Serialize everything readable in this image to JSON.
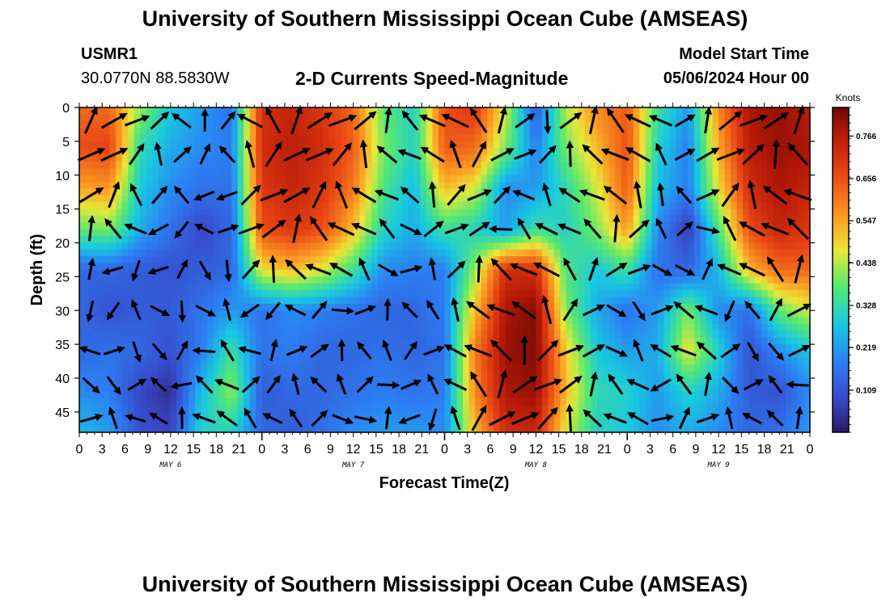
{
  "header": {
    "title": "University of Southern Mississippi Ocean Cube (AMSEAS)",
    "station": "USMR1",
    "coords": "30.0770N  88.5830W",
    "subtitle": "2-D Currents Speed-Magnitude",
    "start_label": "Model Start Time",
    "start_value": "05/06/2024 Hour 00"
  },
  "footer": {
    "title": "University of Southern Mississippi Ocean Cube (AMSEAS)"
  },
  "chart_data": {
    "type": "heatmap",
    "title": "2-D Currents Speed-Magnitude",
    "xlabel": "Forecast Time(Z)",
    "ylabel": "Depth (ft)",
    "x_range_hours": [
      0,
      96
    ],
    "y_range_ft": [
      0,
      48
    ],
    "y_inverted": true,
    "x_tick_hours": [
      0,
      3,
      6,
      9,
      12,
      15,
      18,
      21,
      24,
      27,
      30,
      33,
      36,
      39,
      42,
      45,
      48,
      51,
      54,
      57,
      60,
      63,
      66,
      69,
      72,
      75,
      78,
      81,
      84,
      87,
      90,
      93,
      96
    ],
    "x_tick_labels": [
      "0",
      "3",
      "6",
      "9",
      "12",
      "15",
      "18",
      "21",
      "0",
      "3",
      "6",
      "9",
      "12",
      "15",
      "18",
      "21",
      "0",
      "3",
      "6",
      "9",
      "12",
      "15",
      "18",
      "21",
      "0",
      "3",
      "6",
      "9",
      "12",
      "15",
      "18",
      "21",
      "0"
    ],
    "y_ticks": [
      0,
      5,
      10,
      15,
      20,
      25,
      30,
      35,
      40,
      45
    ],
    "day_labels": [
      {
        "text": "MAY 6",
        "hour": 12
      },
      {
        "text": "MAY 7",
        "hour": 36
      },
      {
        "text": "MAY 8",
        "hour": 60
      },
      {
        "text": "MAY 9",
        "hour": 84
      }
    ],
    "colorbar": {
      "unit": "Knots",
      "ticks": [
        0.109,
        0.219,
        0.328,
        0.438,
        0.547,
        0.656,
        0.766
      ],
      "range": [
        0.0,
        0.84
      ]
    },
    "speed_knots_grid": {
      "depths_ft": [
        0,
        6,
        12,
        18,
        24,
        30,
        36,
        42,
        48
      ],
      "hours": [
        0,
        4,
        8,
        12,
        16,
        20,
        24,
        28,
        32,
        36,
        40,
        44,
        48,
        52,
        56,
        60,
        64,
        68,
        72,
        76,
        80,
        84,
        88,
        92,
        96
      ],
      "values": [
        [
          0.62,
          0.62,
          0.42,
          0.28,
          0.22,
          0.16,
          0.72,
          0.74,
          0.7,
          0.62,
          0.38,
          0.3,
          0.66,
          0.7,
          0.46,
          0.12,
          0.44,
          0.58,
          0.64,
          0.34,
          0.22,
          0.58,
          0.78,
          0.8,
          0.76
        ],
        [
          0.66,
          0.68,
          0.32,
          0.24,
          0.2,
          0.18,
          0.72,
          0.76,
          0.72,
          0.64,
          0.4,
          0.3,
          0.64,
          0.62,
          0.4,
          0.18,
          0.4,
          0.52,
          0.66,
          0.3,
          0.18,
          0.54,
          0.76,
          0.8,
          0.78
        ],
        [
          0.54,
          0.56,
          0.28,
          0.2,
          0.16,
          0.16,
          0.7,
          0.74,
          0.7,
          0.6,
          0.36,
          0.26,
          0.52,
          0.46,
          0.2,
          0.22,
          0.32,
          0.46,
          0.64,
          0.26,
          0.18,
          0.48,
          0.72,
          0.78,
          0.74
        ],
        [
          0.38,
          0.4,
          0.24,
          0.16,
          0.08,
          0.14,
          0.66,
          0.7,
          0.66,
          0.52,
          0.3,
          0.24,
          0.34,
          0.3,
          0.22,
          0.34,
          0.3,
          0.4,
          0.56,
          0.2,
          0.06,
          0.36,
          0.66,
          0.74,
          0.7
        ],
        [
          0.14,
          0.14,
          0.12,
          0.1,
          0.12,
          0.14,
          0.48,
          0.52,
          0.46,
          0.34,
          0.2,
          0.18,
          0.18,
          0.42,
          0.72,
          0.72,
          0.36,
          0.28,
          0.34,
          0.16,
          0.14,
          0.26,
          0.52,
          0.62,
          0.62
        ],
        [
          0.14,
          0.1,
          0.12,
          0.12,
          0.16,
          0.22,
          0.16,
          0.2,
          0.18,
          0.16,
          0.14,
          0.14,
          0.18,
          0.52,
          0.78,
          0.82,
          0.4,
          0.24,
          0.16,
          0.22,
          0.4,
          0.2,
          0.16,
          0.38,
          0.46
        ],
        [
          0.14,
          0.16,
          0.14,
          0.1,
          0.18,
          0.34,
          0.16,
          0.18,
          0.14,
          0.14,
          0.16,
          0.14,
          0.16,
          0.6,
          0.8,
          0.82,
          0.5,
          0.28,
          0.22,
          0.24,
          0.48,
          0.3,
          0.1,
          0.2,
          0.28
        ],
        [
          0.2,
          0.18,
          0.08,
          0.04,
          0.26,
          0.42,
          0.12,
          0.14,
          0.14,
          0.16,
          0.18,
          0.16,
          0.18,
          0.58,
          0.78,
          0.8,
          0.52,
          0.32,
          0.3,
          0.22,
          0.3,
          0.24,
          0.12,
          0.1,
          0.2
        ],
        [
          0.26,
          0.22,
          0.1,
          0.08,
          0.3,
          0.3,
          0.14,
          0.12,
          0.16,
          0.2,
          0.22,
          0.22,
          0.2,
          0.52,
          0.72,
          0.74,
          0.46,
          0.3,
          0.28,
          0.2,
          0.24,
          0.2,
          0.14,
          0.16,
          0.22
        ]
      ]
    }
  }
}
